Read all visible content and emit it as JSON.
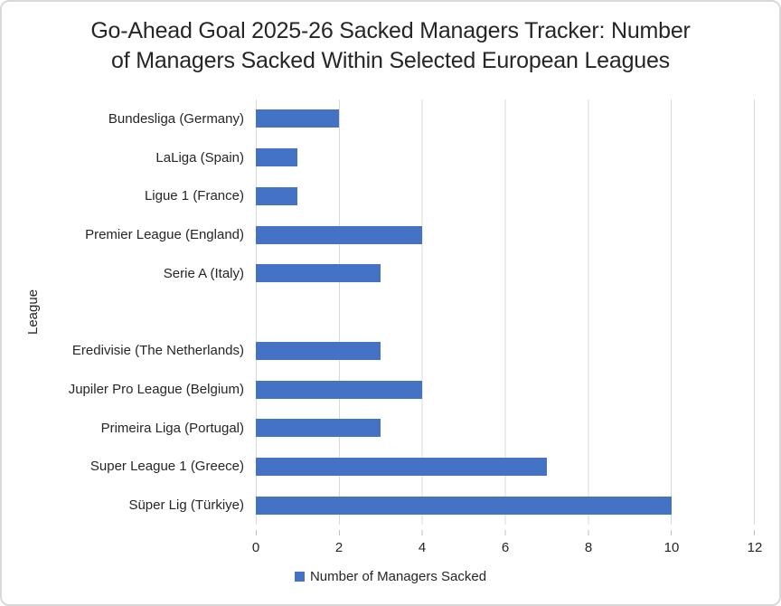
{
  "title_lines": [
    "Go-Ahead Goal 2025-26 Sacked Managers Tracker: Number",
    "of Managers Sacked Within Selected European Leagues"
  ],
  "y_axis_title": "League",
  "legend": {
    "label": "Number of Managers Sacked",
    "swatch_color": "#4472C4"
  },
  "colors": {
    "bar": "#4472C4",
    "gridline": "#D9D9D9",
    "tick_mark": "#BFBFBF",
    "text": "#262626",
    "card_border": "#D9D9D9"
  },
  "chart_data": {
    "type": "bar",
    "orientation": "horizontal",
    "title": "Go-Ahead Goal 2025-26 Sacked Managers Tracker: Number of Managers Sacked Within Selected European Leagues",
    "series_name": "Number of Managers Sacked",
    "categories": [
      "Bundesliga (Germany)",
      "LaLiga (Spain)",
      "Ligue 1 (France)",
      "Premier League (England)",
      "Serie A (Italy)",
      "Eredivisie (The Netherlands)",
      "Jupiler Pro League (Belgium)",
      "Primeira Liga (Portugal)",
      "Super League 1 (Greece)",
      "Süper Lig (Türkiye)"
    ],
    "values": [
      2,
      1,
      1,
      4,
      3,
      3,
      4,
      3,
      7,
      10
    ],
    "xlabel": "",
    "ylabel": "League",
    "xlim": [
      0,
      12
    ],
    "x_ticks": [
      0,
      2,
      4,
      6,
      8,
      10,
      12
    ],
    "grid": "vertical gridlines on",
    "legend_position": "bottom-center",
    "blank_row_after_index": 4
  }
}
